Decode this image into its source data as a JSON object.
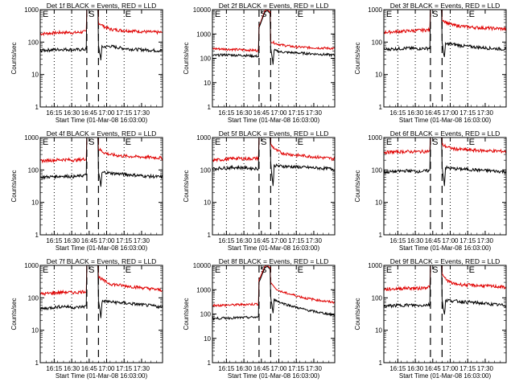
{
  "figure": {
    "description_none": "",
    "ylabel": "Counts/sec",
    "xlabel": "Start Time (01-Mar-08 16:03:00)",
    "event_markers": [
      "E",
      "S",
      "E"
    ]
  },
  "chart_data": [
    {
      "type": "line",
      "title": "Det 1f BLACK = Events, RED = LLD",
      "ylabel": "Counts/sec",
      "xlabel": "Start Time (01-Mar-08 16:03:00)",
      "ylog": true,
      "ylim": [
        1,
        1000
      ],
      "yticks": [
        "1",
        "10",
        "100",
        "1000"
      ],
      "xticks": [
        "16:15",
        "16:30",
        "16:45",
        "17:00",
        "17:15",
        "17:30"
      ],
      "xlim": [
        0,
        105
      ],
      "dotted": [
        12,
        27,
        57,
        72
      ],
      "dashed": [
        40,
        50
      ],
      "series": [
        {
          "name": "RED",
          "color": "#e00000",
          "x": [
            0,
            10,
            20,
            30,
            39.5,
            40,
            49.5,
            50,
            55,
            60,
            70,
            80,
            90,
            100,
            105
          ],
          "values": [
            180,
            190,
            200,
            195,
            210,
            1000,
            1000,
            400,
            300,
            250,
            230,
            220,
            210,
            200,
            200
          ]
        },
        {
          "name": "BLACK",
          "color": "#000000",
          "x": [
            0,
            10,
            20,
            30,
            39.5,
            40,
            49.5,
            50,
            52,
            53,
            55,
            60,
            70,
            80,
            90,
            100,
            105
          ],
          "values": [
            55,
            58,
            60,
            58,
            60,
            1000,
            1000,
            75,
            30,
            70,
            72,
            75,
            65,
            60,
            58,
            55,
            55
          ]
        }
      ]
    },
    {
      "type": "line",
      "title": "Det 2f BLACK = Events, RED = LLD",
      "ylabel": "Counts/sec",
      "xlabel": "Start Time (01-Mar-08 16:03:00)",
      "ylog": true,
      "ylim": [
        1,
        10000
      ],
      "yticks": [
        "1",
        "10",
        "100",
        "1000",
        "10000"
      ],
      "xticks": [
        "16:15",
        "16:30",
        "16:45",
        "17:00",
        "17:15",
        "17:30"
      ],
      "xlim": [
        0,
        105
      ],
      "dotted": [
        12,
        27,
        57,
        72
      ],
      "dashed": [
        40,
        50
      ],
      "series": [
        {
          "name": "RED",
          "color": "#e00000",
          "x": [
            0,
            10,
            20,
            30,
            39.5,
            40,
            45,
            47,
            49.5,
            50,
            55,
            60,
            70,
            80,
            90,
            100,
            105
          ],
          "values": [
            250,
            240,
            230,
            220,
            210,
            2000,
            9000,
            10000,
            8000,
            500,
            400,
            350,
            300,
            280,
            270,
            260,
            250
          ]
        },
        {
          "name": "BLACK",
          "color": "#000000",
          "x": [
            0,
            10,
            20,
            30,
            39.5,
            40,
            45,
            47,
            49.5,
            50,
            52,
            53,
            55,
            60,
            70,
            80,
            90,
            100,
            105
          ],
          "values": [
            130,
            140,
            135,
            130,
            120,
            1800,
            8000,
            9000,
            7000,
            250,
            60,
            220,
            200,
            180,
            170,
            160,
            150,
            140,
            135
          ]
        }
      ]
    },
    {
      "type": "line",
      "title": "Det 3f BLACK = Events, RED = LLD",
      "ylabel": "Counts/sec",
      "xlabel": "Start Time (01-Mar-08 16:03:00)",
      "ylog": true,
      "ylim": [
        1,
        1000
      ],
      "yticks": [
        "1",
        "10",
        "100",
        "1000"
      ],
      "xticks": [
        "16:15",
        "16:30",
        "16:45",
        "17:00",
        "17:15",
        "17:30"
      ],
      "xlim": [
        0,
        105
      ],
      "dotted": [
        12,
        27,
        57,
        72
      ],
      "dashed": [
        40,
        50
      ],
      "series": [
        {
          "name": "RED",
          "color": "#e00000",
          "x": [
            0,
            10,
            20,
            30,
            39.5,
            40,
            49.5,
            50,
            55,
            60,
            70,
            80,
            90,
            100,
            105
          ],
          "values": [
            200,
            210,
            220,
            230,
            240,
            1000,
            1000,
            500,
            380,
            330,
            300,
            280,
            270,
            260,
            250
          ]
        },
        {
          "name": "BLACK",
          "color": "#000000",
          "x": [
            0,
            10,
            20,
            30,
            39.5,
            40,
            49.5,
            50,
            52,
            53,
            55,
            60,
            70,
            80,
            90,
            100,
            105
          ],
          "values": [
            60,
            62,
            65,
            63,
            65,
            1000,
            1000,
            90,
            35,
            85,
            88,
            85,
            75,
            70,
            65,
            62,
            60
          ]
        }
      ]
    },
    {
      "type": "line",
      "title": "Det 4f BLACK = Events, RED = LLD",
      "ylabel": "Counts/sec",
      "xlabel": "Start Time (01-Mar-08 16:03:00)",
      "ylog": true,
      "ylim": [
        1,
        1000
      ],
      "yticks": [
        "1",
        "10",
        "100",
        "1000"
      ],
      "xticks": [
        "16:15",
        "16:30",
        "16:45",
        "17:00",
        "17:15",
        "17:30"
      ],
      "xlim": [
        0,
        105
      ],
      "dotted": [
        12,
        27,
        57,
        72
      ],
      "dashed": [
        40,
        50
      ],
      "series": [
        {
          "name": "RED",
          "color": "#e00000",
          "x": [
            0,
            10,
            20,
            30,
            39.5,
            40,
            49.5,
            50,
            55,
            60,
            70,
            80,
            90,
            100,
            105
          ],
          "values": [
            190,
            200,
            210,
            200,
            220,
            1000,
            1000,
            450,
            340,
            300,
            270,
            260,
            250,
            240,
            230
          ]
        },
        {
          "name": "BLACK",
          "color": "#000000",
          "x": [
            0,
            10,
            20,
            30,
            39.5,
            40,
            49.5,
            50,
            52,
            53,
            55,
            60,
            70,
            80,
            90,
            100,
            105
          ],
          "values": [
            60,
            62,
            65,
            62,
            70,
            1000,
            1000,
            90,
            30,
            80,
            85,
            80,
            75,
            70,
            65,
            62,
            60
          ]
        }
      ]
    },
    {
      "type": "line",
      "title": "Det 5f BLACK = Events, RED = LLD",
      "ylabel": "Counts/sec",
      "xlabel": "Start Time (01-Mar-08 16:03:00)",
      "ylog": true,
      "ylim": [
        1,
        1000
      ],
      "yticks": [
        "1",
        "10",
        "100",
        "1000"
      ],
      "xticks": [
        "16:15",
        "16:30",
        "16:45",
        "17:00",
        "17:15",
        "17:30"
      ],
      "xlim": [
        0,
        105
      ],
      "dotted": [
        12,
        27,
        57,
        72
      ],
      "dashed": [
        40,
        50
      ],
      "series": [
        {
          "name": "RED",
          "color": "#e00000",
          "x": [
            0,
            10,
            20,
            30,
            39.5,
            40,
            49.5,
            50,
            55,
            60,
            70,
            80,
            90,
            100,
            105
          ],
          "values": [
            200,
            210,
            230,
            220,
            230,
            1000,
            1000,
            600,
            400,
            330,
            290,
            270,
            250,
            230,
            220
          ]
        },
        {
          "name": "BLACK",
          "color": "#000000",
          "x": [
            0,
            10,
            20,
            30,
            39.5,
            40,
            49.5,
            50,
            52,
            53,
            55,
            60,
            70,
            80,
            90,
            100,
            105
          ],
          "values": [
            110,
            115,
            120,
            115,
            110,
            1000,
            1000,
            180,
            30,
            140,
            135,
            130,
            125,
            120,
            115,
            110,
            105
          ]
        }
      ]
    },
    {
      "type": "line",
      "title": "Det 6f BLACK = Events, RED = LLD",
      "ylabel": "Counts/sec",
      "xlabel": "Start Time (01-Mar-08 16:03:00)",
      "ylog": true,
      "ylim": [
        1,
        1000
      ],
      "yticks": [
        "1",
        "10",
        "100",
        "1000"
      ],
      "xticks": [
        "16:15",
        "16:30",
        "16:45",
        "17:00",
        "17:15",
        "17:30"
      ],
      "xlim": [
        0,
        105
      ],
      "dotted": [
        12,
        27,
        57,
        72
      ],
      "dashed": [
        40,
        50
      ],
      "series": [
        {
          "name": "RED",
          "color": "#e00000",
          "x": [
            0,
            10,
            20,
            30,
            39.5,
            40,
            49.5,
            50,
            55,
            60,
            70,
            80,
            90,
            100,
            105
          ],
          "values": [
            350,
            360,
            370,
            365,
            380,
            1000,
            1000,
            600,
            500,
            450,
            420,
            400,
            390,
            380,
            370
          ]
        },
        {
          "name": "BLACK",
          "color": "#000000",
          "x": [
            0,
            10,
            20,
            30,
            39.5,
            40,
            49.5,
            50,
            52,
            53,
            55,
            60,
            70,
            80,
            90,
            100,
            105
          ],
          "values": [
            85,
            90,
            95,
            90,
            95,
            1000,
            1000,
            130,
            35,
            120,
            115,
            110,
            105,
            100,
            95,
            90,
            88
          ]
        }
      ]
    },
    {
      "type": "line",
      "title": "Det 7f BLACK = Events, RED = LLD",
      "ylabel": "Counts/sec",
      "xlabel": "Start Time (01-Mar-08 16:03:00)",
      "ylog": true,
      "ylim": [
        1,
        1000
      ],
      "yticks": [
        "1",
        "10",
        "100",
        "1000"
      ],
      "xticks": [
        "16:15",
        "16:30",
        "16:45",
        "17:00",
        "17:15",
        "17:30"
      ],
      "xlim": [
        0,
        105
      ],
      "dotted": [
        12,
        27,
        57,
        72
      ],
      "dashed": [
        40,
        50
      ],
      "series": [
        {
          "name": "RED",
          "color": "#e00000",
          "x": [
            0,
            10,
            20,
            30,
            39.5,
            40,
            49.5,
            50,
            55,
            60,
            70,
            80,
            90,
            100,
            105
          ],
          "values": [
            130,
            140,
            150,
            145,
            160,
            1000,
            1000,
            450,
            330,
            270,
            240,
            220,
            200,
            180,
            170
          ]
        },
        {
          "name": "BLACK",
          "color": "#000000",
          "x": [
            0,
            10,
            20,
            30,
            39.5,
            40,
            49.5,
            50,
            52,
            53,
            55,
            60,
            70,
            80,
            90,
            100,
            105
          ],
          "values": [
            45,
            50,
            55,
            50,
            55,
            1000,
            1000,
            90,
            25,
            75,
            80,
            75,
            70,
            65,
            60,
            55,
            50
          ]
        }
      ]
    },
    {
      "type": "line",
      "title": "Det 8f BLACK = Events, RED = LLD",
      "ylabel": "Counts/sec",
      "xlabel": "Start Time (01-Mar-08 16:03:00)",
      "ylog": true,
      "ylim": [
        1,
        10000
      ],
      "yticks": [
        "1",
        "10",
        "100",
        "1000",
        "10000"
      ],
      "xticks": [
        "16:15",
        "16:30",
        "16:45",
        "17:00",
        "17:15",
        "17:30"
      ],
      "xlim": [
        0,
        105
      ],
      "dotted": [
        12,
        27,
        57,
        72
      ],
      "dashed": [
        40,
        50
      ],
      "series": [
        {
          "name": "RED",
          "color": "#e00000",
          "x": [
            0,
            10,
            20,
            30,
            39.5,
            40,
            45,
            47,
            49.5,
            50,
            55,
            60,
            70,
            80,
            90,
            100,
            105
          ],
          "values": [
            230,
            230,
            240,
            250,
            260,
            2500,
            9000,
            10000,
            8000,
            2000,
            1000,
            800,
            600,
            450,
            380,
            320,
            300
          ]
        },
        {
          "name": "BLACK",
          "color": "#000000",
          "x": [
            0,
            10,
            20,
            30,
            39.5,
            40,
            45,
            47,
            49.5,
            50,
            52,
            53,
            55,
            60,
            70,
            80,
            90,
            100,
            105
          ],
          "values": [
            65,
            68,
            70,
            72,
            75,
            2000,
            8000,
            9000,
            7000,
            500,
            120,
            400,
            350,
            280,
            200,
            150,
            120,
            100,
            90
          ]
        }
      ]
    },
    {
      "type": "line",
      "title": "Det 9f BLACK = Events, RED = LLD",
      "ylabel": "Counts/sec",
      "xlabel": "Start Time (01-Mar-08 16:03:00)",
      "ylog": true,
      "ylim": [
        1,
        1000
      ],
      "yticks": [
        "1",
        "10",
        "100",
        "1000"
      ],
      "xticks": [
        "16:15",
        "16:30",
        "16:45",
        "17:00",
        "17:15",
        "17:30"
      ],
      "xlim": [
        0,
        105
      ],
      "dotted": [
        12,
        27,
        57,
        72
      ],
      "dashed": [
        40,
        50
      ],
      "series": [
        {
          "name": "RED",
          "color": "#e00000",
          "x": [
            0,
            10,
            20,
            30,
            39.5,
            40,
            49.5,
            50,
            55,
            60,
            70,
            80,
            90,
            100,
            105
          ],
          "values": [
            180,
            190,
            200,
            195,
            220,
            1000,
            1000,
            500,
            330,
            270,
            250,
            240,
            230,
            220,
            210
          ]
        },
        {
          "name": "BLACK",
          "color": "#000000",
          "x": [
            0,
            10,
            20,
            30,
            39.5,
            40,
            49.5,
            50,
            52,
            53,
            55,
            60,
            70,
            80,
            90,
            100,
            105
          ],
          "values": [
            55,
            58,
            60,
            58,
            62,
            1000,
            1000,
            90,
            30,
            80,
            85,
            80,
            75,
            70,
            65,
            60,
            58
          ]
        }
      ]
    }
  ]
}
